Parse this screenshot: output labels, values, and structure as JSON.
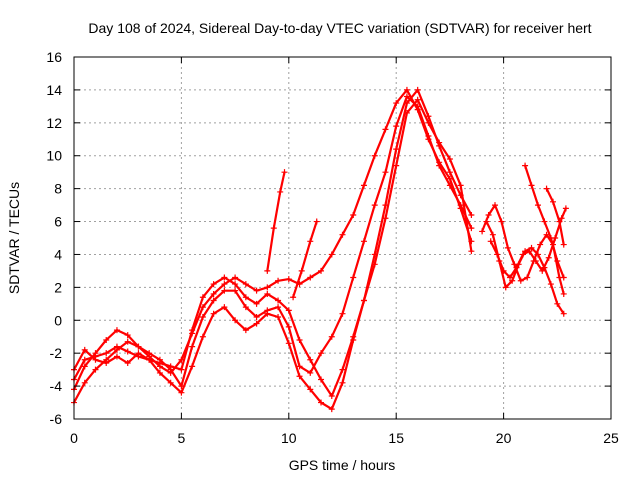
{
  "chart_data": {
    "type": "scatter",
    "title": "Day 108 of 2024, Sidereal Day-to-day VTEC variation (SDTVAR) for receiver hert",
    "xlabel": "GPS time / hours",
    "ylabel": "SDTVAR / TECUs",
    "xlim": [
      0,
      25
    ],
    "ylim": [
      -6,
      16
    ],
    "xticks": [
      0,
      5,
      10,
      15,
      20,
      25
    ],
    "yticks": [
      -6,
      -4,
      -2,
      0,
      2,
      4,
      6,
      8,
      10,
      12,
      14,
      16
    ],
    "grid": true,
    "marker": "+",
    "color": "#ff0000",
    "series": [
      {
        "x": [
          0.0,
          0.5,
          1.0,
          1.5,
          2.0,
          2.5,
          3.0,
          3.5,
          4.0,
          4.5,
          5.0,
          5.5,
          6.0,
          6.5,
          7.0,
          7.5,
          8.0,
          8.5,
          9.0,
          9.5,
          10.0,
          10.5,
          11.0,
          11.5,
          12.0,
          12.5,
          13.0,
          13.5,
          14.0,
          14.5,
          15.0,
          15.5,
          16.0,
          16.5,
          17.0,
          17.5,
          18.0,
          18.5
        ],
        "y": [
          -5.0,
          -3.8,
          -3.0,
          -2.4,
          -1.8,
          -1.3,
          -1.6,
          -2.2,
          -2.8,
          -3.2,
          -2.4,
          -0.8,
          0.8,
          1.6,
          2.2,
          2.6,
          2.2,
          1.8,
          2.0,
          2.4,
          2.5,
          2.2,
          2.6,
          3.0,
          4.0,
          5.2,
          6.4,
          8.2,
          10.0,
          11.6,
          13.2,
          14.0,
          12.8,
          11.0,
          9.6,
          8.6,
          6.8,
          4.8
        ]
      },
      {
        "x": [
          0.0,
          0.5,
          1.0,
          1.5,
          2.0,
          2.5,
          3.0,
          3.5,
          4.0,
          4.5,
          5.0,
          5.5,
          6.0,
          6.5,
          7.0,
          7.5,
          8.0,
          8.5,
          9.0,
          9.5,
          10.0,
          10.5,
          11.0,
          11.5,
          12.0,
          12.5,
          13.0,
          13.5,
          14.0,
          14.5,
          15.0,
          15.5,
          16.0,
          16.5,
          17.0,
          17.5,
          18.0,
          18.5
        ],
        "y": [
          -4.2,
          -2.8,
          -2.0,
          -1.2,
          -0.6,
          -0.9,
          -1.6,
          -2.0,
          -2.4,
          -3.0,
          -4.0,
          -1.6,
          0.2,
          1.2,
          1.8,
          1.8,
          0.8,
          0.2,
          0.6,
          0.8,
          -0.4,
          -2.8,
          -3.2,
          -2.0,
          -1.0,
          0.4,
          2.6,
          4.8,
          7.0,
          9.0,
          11.8,
          13.6,
          13.0,
          11.2,
          9.4,
          8.2,
          7.0,
          5.6
        ]
      },
      {
        "x": [
          0.0,
          0.5,
          1.0,
          1.5,
          2.0,
          2.5,
          3.0,
          3.5,
          4.0,
          4.5,
          5.0,
          5.5,
          6.0,
          6.5,
          7.0,
          7.5,
          8.0,
          8.5,
          9.0,
          9.5,
          10.0,
          10.5,
          11.0,
          11.5,
          12.0,
          12.5,
          13.0,
          13.5,
          14.0,
          14.5,
          15.0,
          15.5,
          16.0,
          16.5,
          17.0,
          17.5,
          18.0,
          18.5
        ],
        "y": [
          -3.6,
          -2.4,
          -2.2,
          -2.0,
          -1.6,
          -1.9,
          -2.2,
          -2.4,
          -2.6,
          -2.8,
          -3.0,
          -0.6,
          1.4,
          2.2,
          2.6,
          2.2,
          1.4,
          1.0,
          1.6,
          1.2,
          0.6,
          -1.2,
          -2.4,
          -3.6,
          -4.6,
          -3.0,
          -1.0,
          1.2,
          4.0,
          7.0,
          10.4,
          13.2,
          14.0,
          12.4,
          10.6,
          9.0,
          7.6,
          6.4
        ]
      },
      {
        "x": [
          0.0,
          0.5,
          1.0,
          1.5,
          2.0,
          2.5,
          3.0,
          3.5,
          4.0,
          4.5,
          5.0,
          5.5,
          6.0,
          6.5,
          7.0,
          7.5,
          8.0,
          8.5,
          9.0,
          9.5,
          10.0,
          10.5,
          11.0,
          11.5,
          12.0,
          12.5,
          13.0,
          13.5,
          14.0,
          14.5,
          15.0,
          15.5,
          16.0,
          16.5,
          17.0,
          17.5,
          18.0,
          18.5
        ],
        "y": [
          -3.0,
          -1.8,
          -2.4,
          -2.6,
          -2.2,
          -2.6,
          -2.0,
          -2.4,
          -3.2,
          -3.8,
          -4.4,
          -2.8,
          -1.0,
          0.4,
          0.8,
          0.0,
          -0.6,
          -0.2,
          0.4,
          0.2,
          -1.4,
          -3.4,
          -4.2,
          -5.0,
          -5.4,
          -3.8,
          -1.2,
          1.2,
          3.4,
          6.2,
          9.4,
          12.6,
          13.4,
          12.0,
          10.8,
          9.8,
          8.2,
          4.2
        ]
      },
      {
        "x": [
          9.0,
          9.3,
          9.6,
          9.8
        ],
        "y": [
          3.0,
          5.6,
          7.8,
          9.0
        ]
      },
      {
        "x": [
          10.2,
          10.6,
          11.0,
          11.3
        ],
        "y": [
          1.4,
          3.0,
          4.8,
          6.0
        ]
      },
      {
        "x": [
          19.0,
          19.3,
          19.6,
          19.9,
          20.2,
          20.5,
          20.8,
          21.1,
          21.4,
          21.7,
          22.0,
          22.3,
          22.6,
          22.8
        ],
        "y": [
          5.4,
          6.4,
          7.0,
          6.0,
          4.4,
          3.4,
          2.4,
          2.6,
          3.6,
          4.6,
          5.2,
          4.6,
          2.6,
          1.6
        ]
      },
      {
        "x": [
          19.2,
          19.5,
          19.8,
          20.1,
          20.4,
          20.7,
          21.0,
          21.3,
          21.6,
          21.9,
          22.2,
          22.5,
          22.8
        ],
        "y": [
          6.0,
          5.2,
          3.6,
          2.0,
          2.4,
          3.4,
          4.2,
          4.4,
          4.0,
          3.2,
          2.2,
          1.0,
          0.4
        ]
      },
      {
        "x": [
          19.4,
          19.7,
          20.0,
          20.3,
          20.6,
          20.9,
          21.2,
          21.5,
          21.8,
          22.1,
          22.4,
          22.7,
          22.9
        ],
        "y": [
          4.8,
          4.0,
          3.0,
          2.6,
          3.2,
          4.0,
          4.2,
          3.6,
          3.0,
          3.8,
          5.0,
          6.2,
          6.8
        ]
      },
      {
        "x": [
          21.0,
          21.3,
          21.6,
          21.9,
          22.2,
          22.5,
          22.8
        ],
        "y": [
          9.4,
          8.2,
          7.0,
          6.0,
          5.0,
          3.6,
          2.6
        ]
      },
      {
        "x": [
          22.0,
          22.3,
          22.6,
          22.8
        ],
        "y": [
          8.0,
          7.2,
          6.0,
          4.6
        ]
      }
    ]
  }
}
